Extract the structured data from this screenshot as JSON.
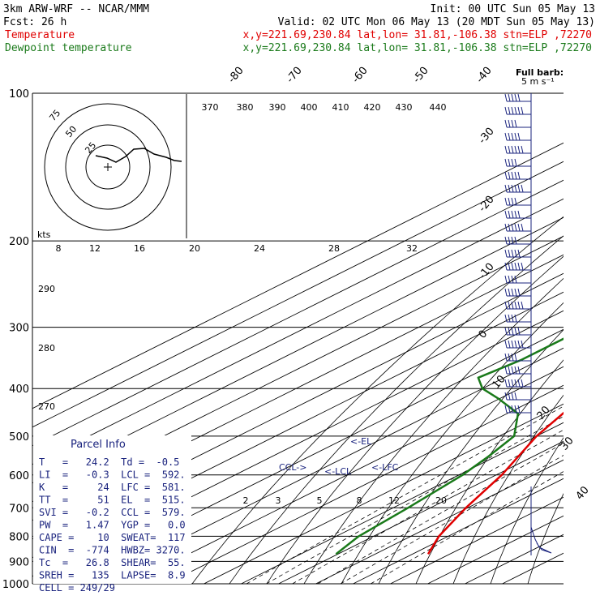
{
  "header": {
    "line1_left": "3km ARW-WRF -- NCAR/MMM",
    "line1_right": "Init: 00 UTC Sun 05 May 13",
    "line2_left": "Fcst:    26 h",
    "line2_right": "Valid: 02 UTC Mon 06 May 13 (20 MDT Sun 05 May 13)",
    "line3_left": "Temperature",
    "line3_right": "x,y=221.69,230.84    lat,lon= 31.81,-106.38   stn=ELP ,72270",
    "line4_left": "Dewpoint temperature",
    "line4_right": "x,y=221.69,230.84    lat,lon= 31.81,-106.38   stn=ELP ,72270"
  },
  "colors": {
    "temperature": "#e00000",
    "dewpoint": "#1a7a1a",
    "grid": "#000000",
    "info_text": "#1a237e",
    "barb": "#1a237e",
    "header_temp": "#e00000",
    "header_dew": "#1a7a1a"
  },
  "wind_legend": {
    "title": "Full barb:",
    "value": "5 m s⁻¹"
  },
  "hodograph_labels": {
    "kts": "kts",
    "rings": [
      "25",
      "50",
      "75"
    ]
  },
  "markers": {
    "el": "<-EL",
    "lfc": "<-LFC",
    "lcl": "<-LCL",
    "ccl": "CCL->"
  },
  "parcel_info": {
    "title": "Parcel Info",
    "rows": [
      "T   =   24.2  Td =  -0.5",
      "LI  =   -0.3  LCL =  592.",
      "K   =     24  LFC =  581.",
      "TT  =     51  EL  =  515.",
      "SVI =   -0.2  CCL =  579.",
      "PW  =   1.47  YGP =   0.0",
      "CAPE =    10  SWEAT=  117",
      "CIN  =  -774  HWBZ= 3270.",
      "Tc  =   26.8  SHEAR=  55.",
      "SREH =   135  LAPSE=  8.9",
      "CELL = 249/29"
    ]
  },
  "chart_data": {
    "type": "line",
    "subtype": "skew-T log-p sounding",
    "y_scale": "log",
    "ylim": [
      1000,
      100
    ],
    "pressure_ticks": [
      100,
      200,
      300,
      400,
      500,
      600,
      700,
      800,
      900,
      1000
    ],
    "pressure_tick_labels": [
      "100",
      "200",
      "300",
      "400",
      "500",
      "600",
      "700",
      "800",
      "900",
      "1000"
    ],
    "isotherm_labels": [
      "-80",
      "-70",
      "-60",
      "-50",
      "-40",
      "-30",
      "-20",
      "-10",
      "0",
      "10",
      "20",
      "30",
      "40"
    ],
    "theta_labels": [
      "370",
      "380",
      "390",
      "400",
      "410",
      "420",
      "430",
      "440"
    ],
    "mixing_ratio_upper_labels": [
      "8",
      "12",
      "16",
      "20",
      "24",
      "28",
      "32"
    ],
    "mixing_ratio_lower_labels": [
      "2",
      "3",
      "5",
      "8",
      "12",
      "20"
    ],
    "dry_adiabat_labels": [
      "290",
      "280",
      "270"
    ],
    "series": [
      {
        "name": "Temperature",
        "points": [
          {
            "p": 870,
            "t": 24.2
          },
          {
            "p": 800,
            "t": 17.5
          },
          {
            "p": 700,
            "t": 9.5
          },
          {
            "p": 600,
            "t": 1.5
          },
          {
            "p": 550,
            "t": -4.0
          },
          {
            "p": 500,
            "t": -10.0
          },
          {
            "p": 450,
            "t": -15.0
          },
          {
            "p": 400,
            "t": -21.0
          },
          {
            "p": 350,
            "t": -29.0
          },
          {
            "p": 300,
            "t": -38.0
          },
          {
            "p": 250,
            "t": -48.0
          },
          {
            "p": 200,
            "t": -57.5
          },
          {
            "p": 175,
            "t": -60.0
          },
          {
            "p": 150,
            "t": -60.5
          },
          {
            "p": 125,
            "t": -64.0
          },
          {
            "p": 100,
            "t": -73.0
          }
        ]
      },
      {
        "name": "Dewpoint temperature",
        "points": [
          {
            "p": 870,
            "t": -0.5
          },
          {
            "p": 800,
            "t": -4.0
          },
          {
            "p": 700,
            "t": -6.0
          },
          {
            "p": 600,
            "t": -9.0
          },
          {
            "p": 550,
            "t": -12.0
          },
          {
            "p": 500,
            "t": -16.0
          },
          {
            "p": 450,
            "t": -27.0
          },
          {
            "p": 420,
            "t": -40.0
          },
          {
            "p": 400,
            "t": -50.0
          },
          {
            "p": 380,
            "t": -57.0
          },
          {
            "p": 350,
            "t": -55.0
          },
          {
            "p": 300,
            "t": -55.0
          },
          {
            "p": 250,
            "t": -64.0
          },
          {
            "p": 200,
            "t": -73.0
          },
          {
            "p": 150,
            "t": -81.0
          },
          {
            "p": 125,
            "t": -82.0
          },
          {
            "p": 100,
            "t": -85.0
          }
        ]
      }
    ]
  }
}
